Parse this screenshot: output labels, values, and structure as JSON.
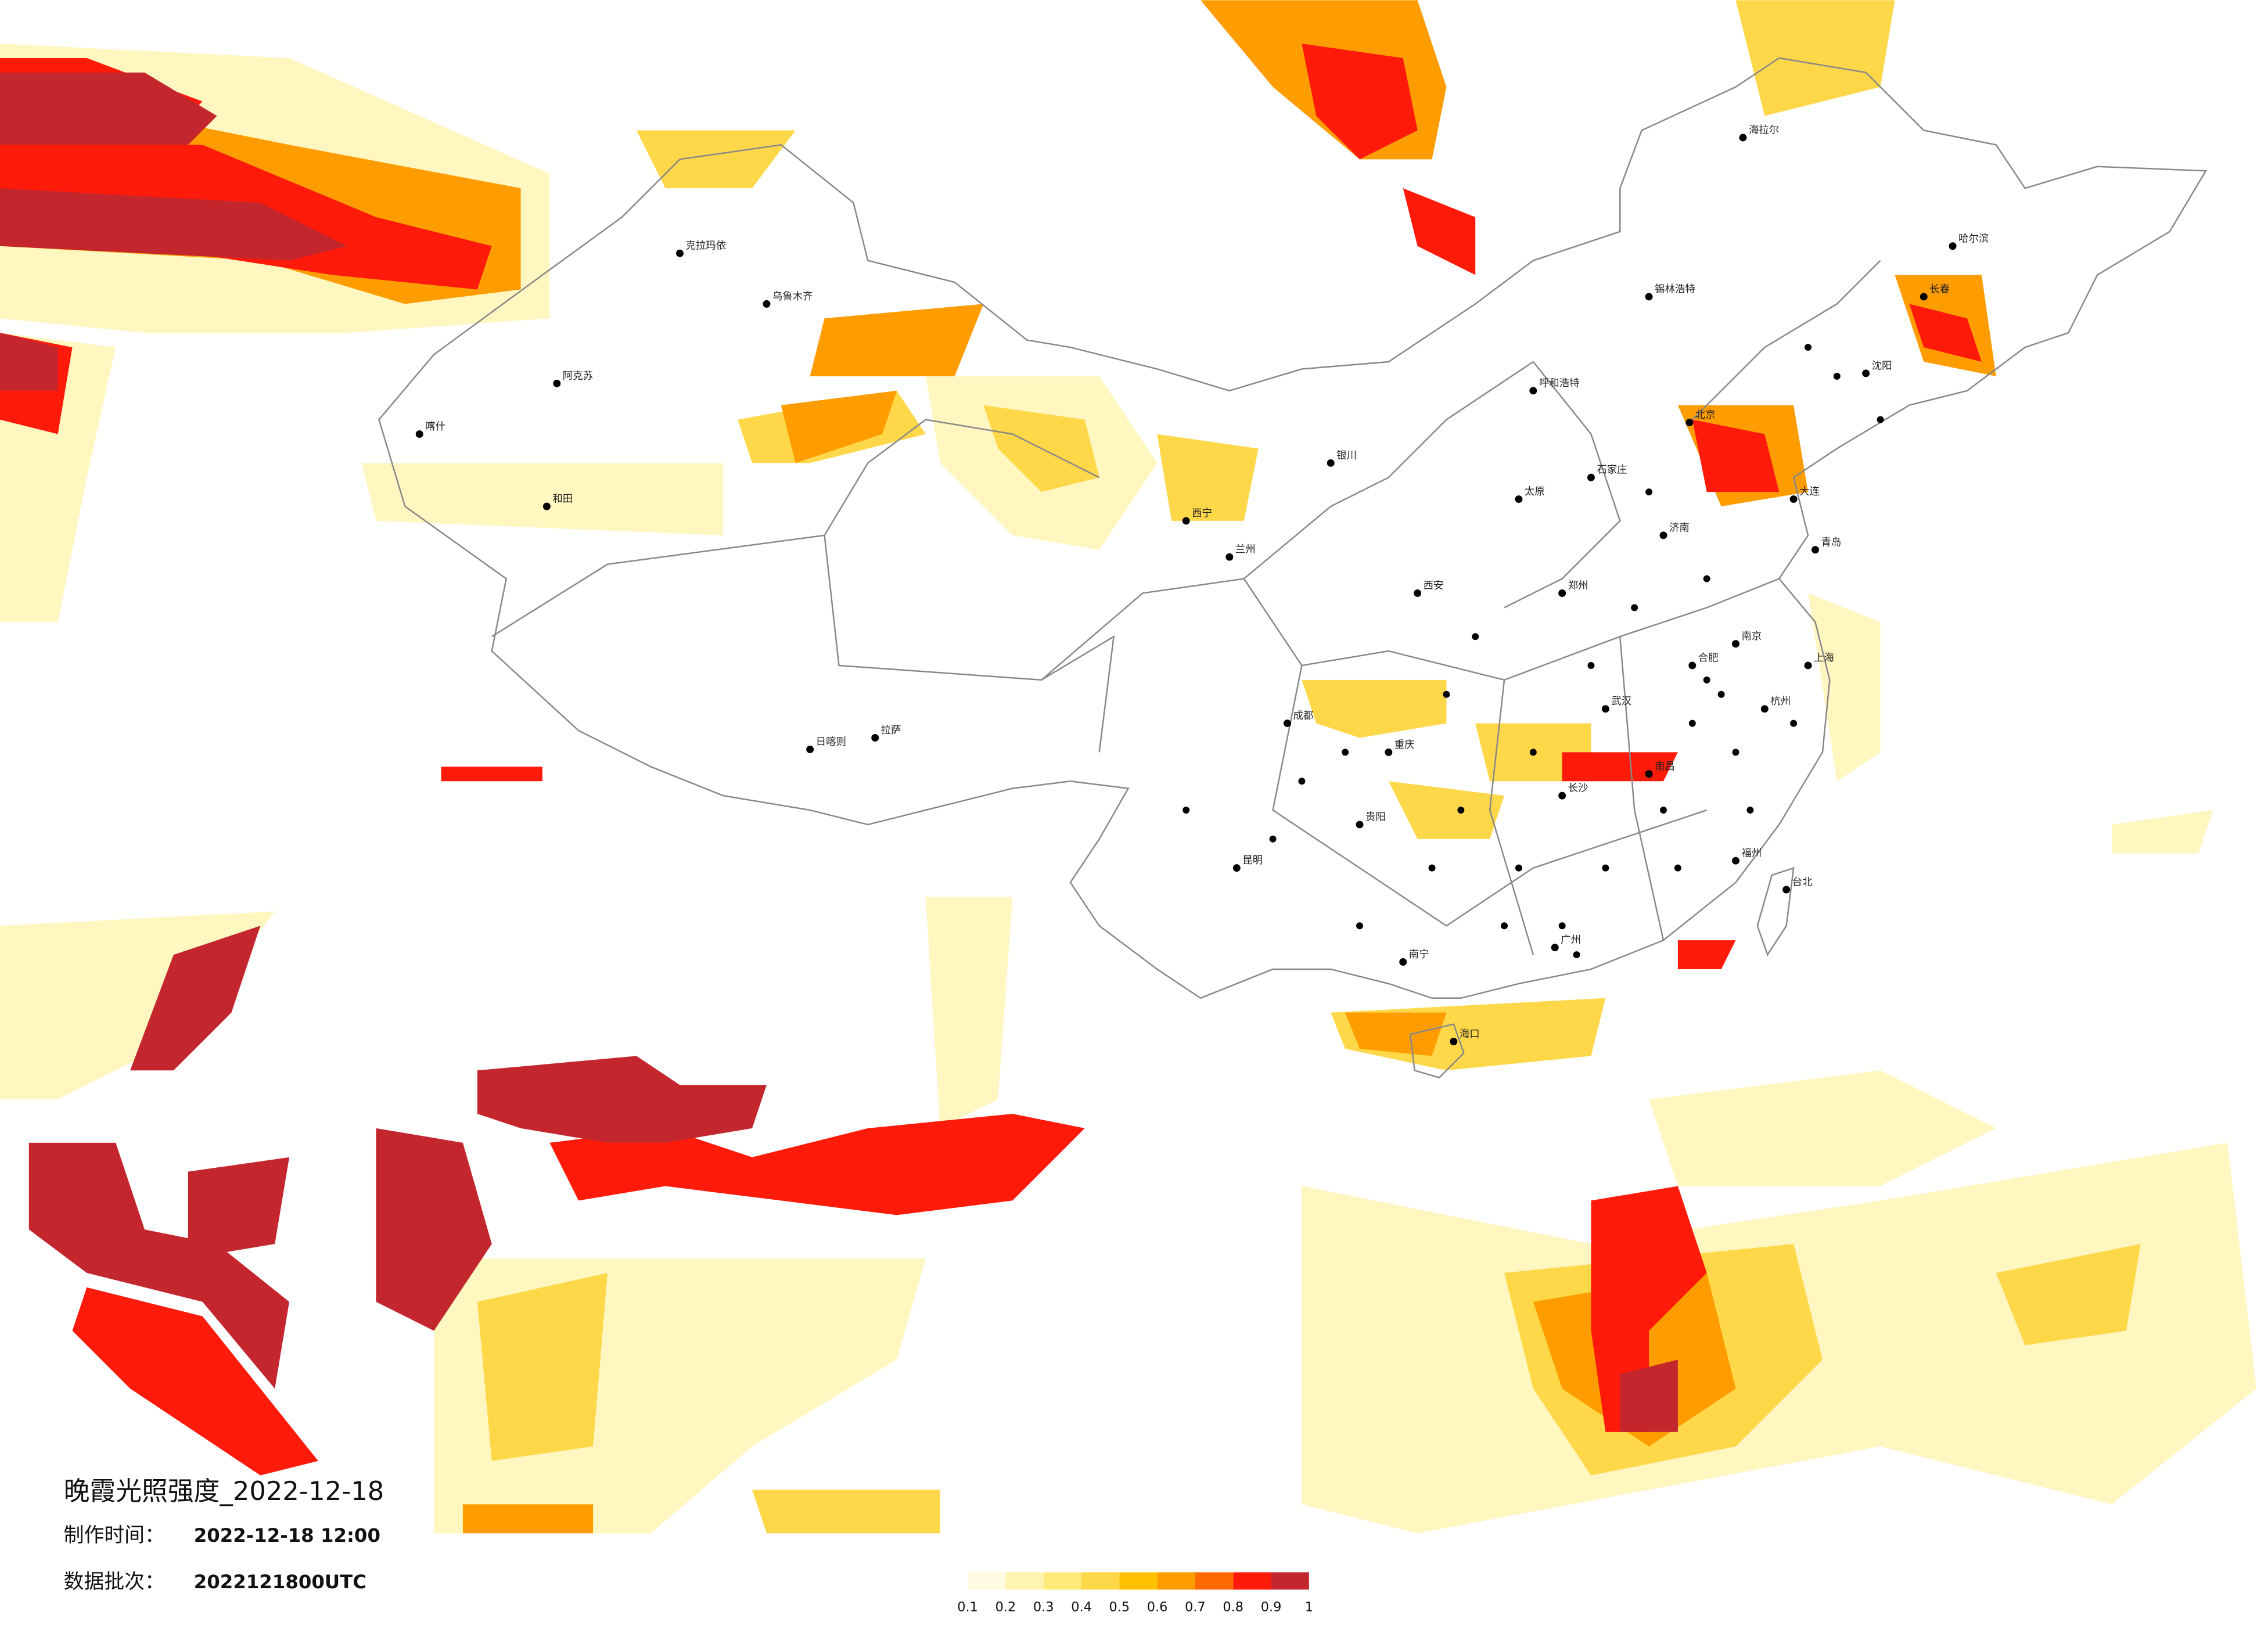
{
  "header": {
    "title": "晚霞光照强度_2022-12-18",
    "made_label": "制作时间：",
    "made_time": "2022-12-18 12:00",
    "batch_label": "数据批次：",
    "batch": "2022121800UTC"
  },
  "legend": {
    "ticks": [
      0.1,
      0.2,
      0.3,
      0.4,
      0.5,
      0.6,
      0.7,
      0.8,
      0.9,
      1
    ],
    "colors": [
      "#fffbe3",
      "#fff3b0",
      "#ffe97a",
      "#ffd84a",
      "#ffc000",
      "#ff9c00",
      "#ff6a00",
      "#ff1a0a",
      "#c4262e"
    ]
  },
  "cities": [
    "哈尔滨",
    "长春",
    "沈阳",
    "锡林浩特",
    "呼和浩特",
    "北京",
    "石家庄",
    "太原",
    "济南",
    "郑州",
    "西安",
    "兰州",
    "西宁",
    "银川",
    "乌鲁木齐",
    "克拉玛依",
    "阿克苏",
    "和田",
    "喀什",
    "拉萨",
    "日喀则",
    "成都",
    "重庆",
    "武汉",
    "长沙",
    "南京",
    "上海",
    "杭州",
    "合肥",
    "南昌",
    "福州",
    "广州",
    "南宁",
    "贵阳",
    "昆明",
    "海口",
    "台北",
    "海拉尔",
    "大连",
    "青岛"
  ]
}
